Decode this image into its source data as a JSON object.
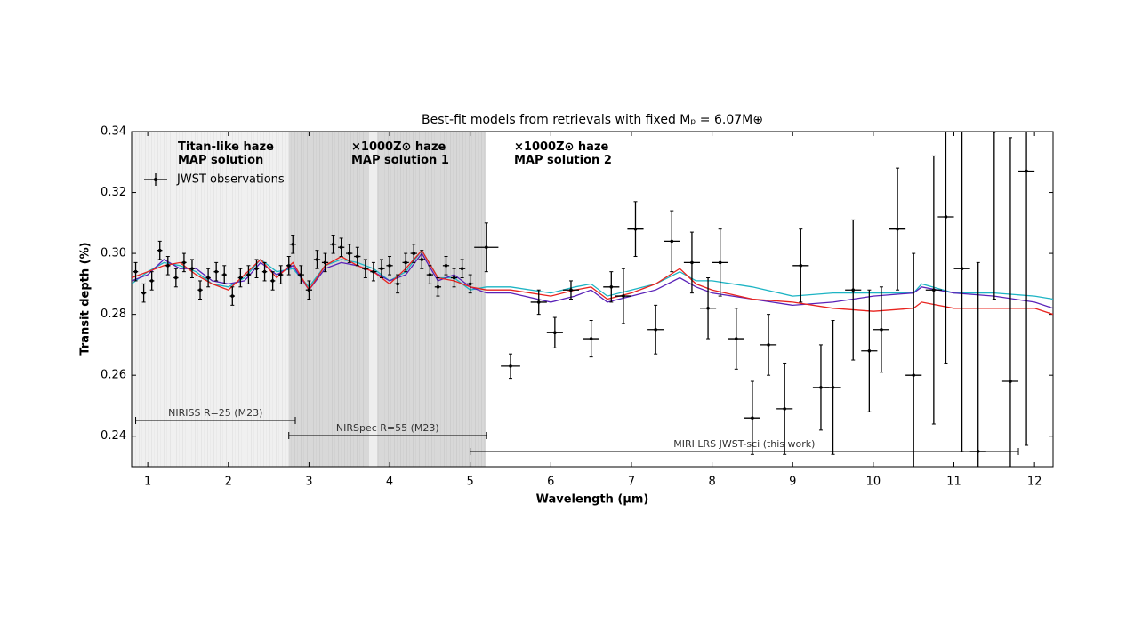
{
  "chart_data": {
    "type": "line",
    "title": "Best-fit models from retrievals with fixed Mₚ = 6.07M⊕",
    "x_label": "Wavelength (μm)",
    "y_label": "Transit depth (%)",
    "xlim": [
      0.8,
      12.23
    ],
    "ylim": [
      0.23,
      0.34
    ],
    "xticks": [
      1,
      2,
      3,
      4,
      5,
      6,
      7,
      8,
      9,
      10,
      11,
      12
    ],
    "yticks": [
      0.24,
      0.26,
      0.28,
      {
        "value": 0.3,
        "label": "0.30"
      },
      0.32,
      0.34
    ],
    "x": [
      0.8,
      1.0,
      1.2,
      1.4,
      1.6,
      1.8,
      2.0,
      2.2,
      2.4,
      2.6,
      2.8,
      3.0,
      3.2,
      3.4,
      3.6,
      3.8,
      4.0,
      4.2,
      4.4,
      4.6,
      4.8,
      5.0,
      5.2,
      5.5,
      6.0,
      6.3,
      6.5,
      6.7,
      7.0,
      7.3,
      7.6,
      7.8,
      8.0,
      8.5,
      9.0,
      9.5,
      10.0,
      10.5,
      10.6,
      11.0,
      11.5,
      12.0,
      12.23
    ],
    "series": [
      {
        "name": "Titan-like haze\nMAP solution",
        "color": "#1db4c4",
        "values": [
          0.29,
          0.294,
          0.297,
          0.296,
          0.294,
          0.29,
          0.289,
          0.292,
          0.298,
          0.294,
          0.295,
          0.289,
          0.296,
          0.298,
          0.297,
          0.295,
          0.291,
          0.294,
          0.301,
          0.292,
          0.292,
          0.288,
          0.289,
          0.289,
          0.287,
          0.289,
          0.29,
          0.286,
          0.288,
          0.29,
          0.294,
          0.291,
          0.291,
          0.289,
          0.286,
          0.287,
          0.287,
          0.287,
          0.29,
          0.287,
          0.287,
          0.286,
          0.285
        ]
      },
      {
        "name": "×1000Z⊙ haze\nMAP solution 1",
        "color": "#5a22b8",
        "values": [
          0.291,
          0.293,
          0.298,
          0.295,
          0.295,
          0.291,
          0.29,
          0.291,
          0.297,
          0.293,
          0.296,
          0.288,
          0.295,
          0.297,
          0.296,
          0.294,
          0.291,
          0.293,
          0.3,
          0.291,
          0.293,
          0.289,
          0.287,
          0.287,
          0.284,
          0.286,
          0.288,
          0.284,
          0.286,
          0.288,
          0.292,
          0.289,
          0.287,
          0.285,
          0.283,
          0.284,
          0.286,
          0.287,
          0.289,
          0.287,
          0.286,
          0.284,
          0.282
        ]
      },
      {
        "name": "×1000Z⊙ haze\nMAP solution 2",
        "color": "#e8231e",
        "values": [
          0.292,
          0.294,
          0.296,
          0.297,
          0.293,
          0.29,
          0.288,
          0.293,
          0.298,
          0.292,
          0.297,
          0.288,
          0.296,
          0.299,
          0.296,
          0.294,
          0.29,
          0.295,
          0.301,
          0.292,
          0.291,
          0.289,
          0.288,
          0.288,
          0.286,
          0.288,
          0.289,
          0.285,
          0.287,
          0.29,
          0.295,
          0.29,
          0.288,
          0.285,
          0.284,
          0.282,
          0.281,
          0.282,
          0.284,
          0.282,
          0.282,
          0.282,
          0.28
        ]
      }
    ],
    "observations": {
      "name": "JWST observations",
      "color": "#000000",
      "x": [
        0.85,
        0.95,
        1.05,
        1.15,
        1.25,
        1.35,
        1.45,
        1.55,
        1.65,
        1.75,
        1.85,
        1.95,
        2.05,
        2.15,
        2.25,
        2.35,
        2.45,
        2.55,
        2.65,
        2.75,
        2.8,
        2.9,
        3.0,
        3.1,
        3.2,
        3.3,
        3.4,
        3.5,
        3.6,
        3.7,
        3.8,
        3.9,
        4.0,
        4.1,
        4.2,
        4.3,
        4.4,
        4.5,
        4.6,
        4.7,
        4.8,
        4.9,
        5.0,
        5.2,
        5.5,
        5.85,
        6.05,
        6.25,
        6.5,
        6.75,
        6.9,
        7.05,
        7.3,
        7.5,
        7.75,
        7.95,
        8.1,
        8.3,
        8.5,
        8.7,
        8.9,
        9.1,
        9.35,
        9.5,
        9.75,
        9.95,
        10.1,
        10.3,
        10.5,
        10.75,
        10.9,
        11.1,
        11.3,
        11.5,
        11.7,
        11.9
      ],
      "y": [
        0.294,
        0.287,
        0.291,
        0.301,
        0.296,
        0.292,
        0.297,
        0.295,
        0.288,
        0.292,
        0.294,
        0.293,
        0.286,
        0.292,
        0.293,
        0.295,
        0.294,
        0.291,
        0.293,
        0.296,
        0.303,
        0.293,
        0.288,
        0.298,
        0.297,
        0.303,
        0.302,
        0.3,
        0.299,
        0.295,
        0.294,
        0.295,
        0.296,
        0.29,
        0.297,
        0.3,
        0.298,
        0.293,
        0.289,
        0.296,
        0.292,
        0.295,
        0.29,
        0.302,
        0.263,
        0.284,
        0.274,
        0.288,
        0.272,
        0.289,
        0.286,
        0.308,
        0.275,
        0.304,
        0.297,
        0.282,
        0.297,
        0.272,
        0.246,
        0.27,
        0.249,
        0.296,
        0.256,
        0.256,
        0.288,
        0.268,
        0.275,
        0.308,
        0.26,
        0.288,
        0.312,
        0.295,
        0.235,
        0.34,
        0.258,
        0.327
      ],
      "xerr": [
        0.03,
        0.03,
        0.03,
        0.03,
        0.03,
        0.03,
        0.03,
        0.03,
        0.03,
        0.03,
        0.03,
        0.03,
        0.03,
        0.03,
        0.03,
        0.03,
        0.03,
        0.03,
        0.03,
        0.03,
        0.04,
        0.04,
        0.04,
        0.04,
        0.04,
        0.04,
        0.04,
        0.04,
        0.04,
        0.04,
        0.04,
        0.04,
        0.04,
        0.04,
        0.04,
        0.04,
        0.04,
        0.04,
        0.04,
        0.04,
        0.04,
        0.04,
        0.04,
        0.15,
        0.12,
        0.1,
        0.1,
        0.1,
        0.1,
        0.1,
        0.1,
        0.1,
        0.1,
        0.1,
        0.1,
        0.1,
        0.1,
        0.1,
        0.1,
        0.1,
        0.1,
        0.1,
        0.1,
        0.1,
        0.1,
        0.1,
        0.1,
        0.1,
        0.1,
        0.1,
        0.1,
        0.1,
        0.1,
        0.1,
        0.1,
        0.1
      ],
      "yerr": [
        0.003,
        0.003,
        0.003,
        0.003,
        0.003,
        0.003,
        0.003,
        0.003,
        0.003,
        0.003,
        0.003,
        0.003,
        0.003,
        0.003,
        0.003,
        0.003,
        0.003,
        0.003,
        0.003,
        0.003,
        0.003,
        0.003,
        0.003,
        0.003,
        0.003,
        0.003,
        0.003,
        0.003,
        0.003,
        0.003,
        0.003,
        0.003,
        0.003,
        0.003,
        0.003,
        0.003,
        0.003,
        0.003,
        0.003,
        0.003,
        0.003,
        0.003,
        0.003,
        0.008,
        0.004,
        0.004,
        0.005,
        0.003,
        0.006,
        0.005,
        0.009,
        0.009,
        0.008,
        0.01,
        0.01,
        0.01,
        0.011,
        0.01,
        0.012,
        0.01,
        0.015,
        0.012,
        0.014,
        0.022,
        0.023,
        0.02,
        0.014,
        0.02,
        0.04,
        0.044,
        0.048,
        0.06,
        0.062,
        0.055,
        0.08,
        0.09
      ]
    },
    "annotations": [
      {
        "text": "NIRISS R=25 (M23)",
        "range": [
          0.85,
          2.83
        ]
      },
      {
        "text": "NIRSpec R=55 (M23)",
        "range": [
          2.75,
          5.2
        ]
      },
      {
        "text": "MIRI LRS JWST-sci (this work)",
        "range": [
          5.0,
          11.8
        ]
      }
    ]
  }
}
